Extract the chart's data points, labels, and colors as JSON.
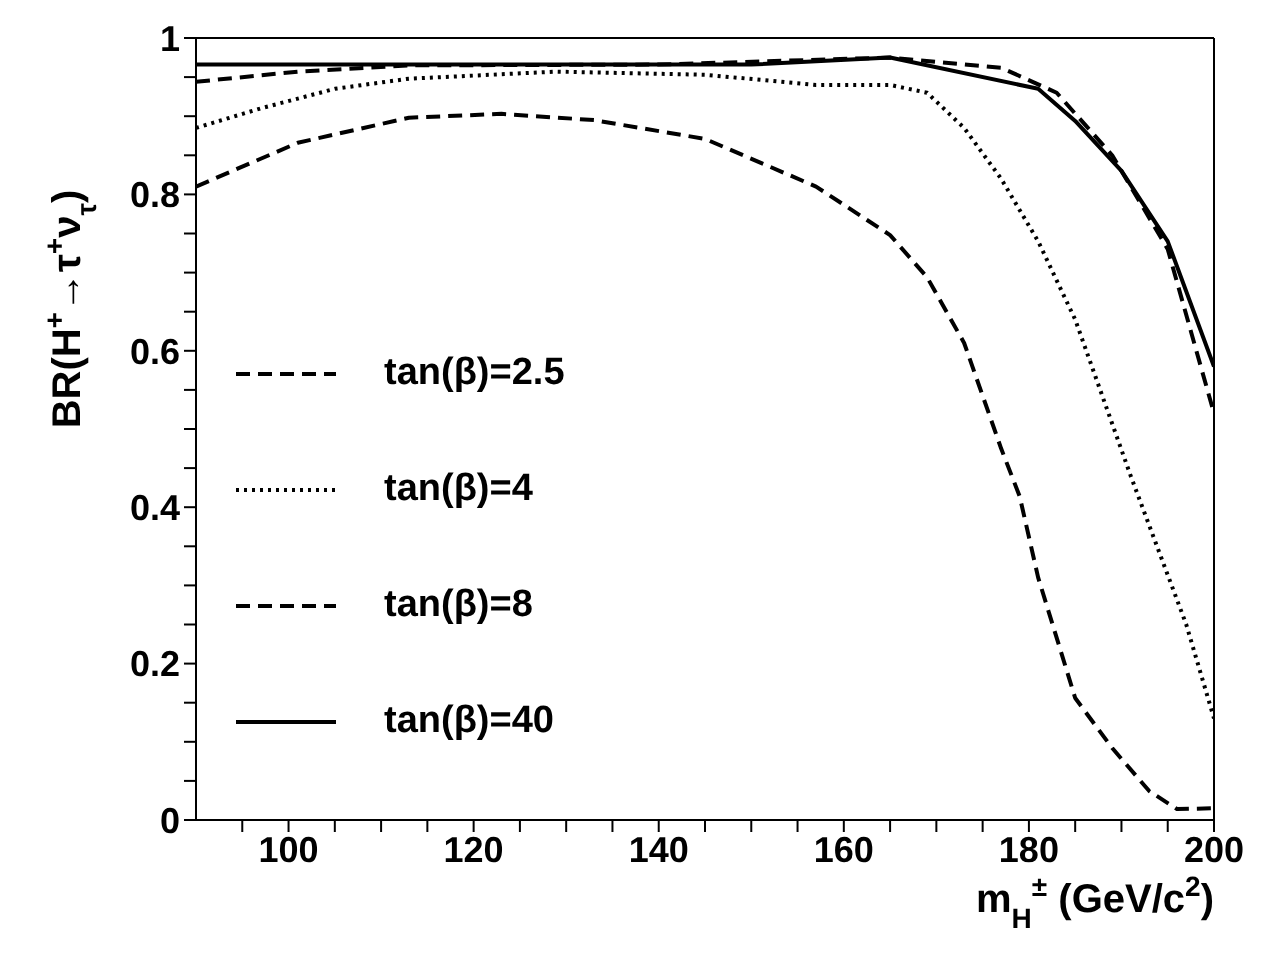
{
  "chart_data": {
    "type": "line",
    "xlabel": "m$_{H}$$^{±}$ (GeV/c$^{2}$)",
    "ylabel": "BR(H$^{+}$→τ$^{+}$ν$_{τ}$)",
    "xlim": [
      90,
      200
    ],
    "ylim": [
      0,
      1
    ],
    "xticks": [
      {
        "value": 95,
        "label": null
      },
      100,
      {
        "value": 105,
        "label": null
      },
      {
        "value": 110,
        "label": null
      },
      {
        "value": 115,
        "label": null
      },
      120,
      {
        "value": 125,
        "label": null
      },
      {
        "value": 130,
        "label": null
      },
      {
        "value": 135,
        "label": null
      },
      140,
      {
        "value": 145,
        "label": null
      },
      {
        "value": 150,
        "label": null
      },
      {
        "value": 155,
        "label": null
      },
      160,
      {
        "value": 165,
        "label": null
      },
      {
        "value": 170,
        "label": null
      },
      {
        "value": 175,
        "label": null
      },
      180,
      {
        "value": 185,
        "label": null
      },
      {
        "value": 190,
        "label": null
      },
      {
        "value": 195,
        "label": null
      },
      200
    ],
    "yticks": [
      0,
      {
        "value": 0.05,
        "label": null
      },
      {
        "value": 0.1,
        "label": null
      },
      {
        "value": 0.15,
        "label": null
      },
      0.2,
      {
        "value": 0.25,
        "label": null
      },
      {
        "value": 0.3,
        "label": null
      },
      {
        "value": 0.35,
        "label": null
      },
      0.4,
      {
        "value": 0.45,
        "label": null
      },
      {
        "value": 0.5,
        "label": null
      },
      {
        "value": 0.55,
        "label": null
      },
      0.6,
      {
        "value": 0.65,
        "label": null
      },
      {
        "value": 0.7,
        "label": null
      },
      {
        "value": 0.75,
        "label": null
      },
      0.8,
      {
        "value": 0.85,
        "label": null
      },
      {
        "value": 0.9,
        "label": null
      },
      {
        "value": 0.95,
        "label": null
      },
      1
    ],
    "legend": "left",
    "marker": "none",
    "series": [
      {
        "name": "tan(β)=2.5",
        "color": "#000000",
        "line_style": "dashed",
        "x": [
          90,
          101,
          113,
          123,
          133,
          145,
          157,
          165,
          169,
          173,
          177,
          179,
          181,
          185,
          189,
          193,
          196,
          200
        ],
        "values": [
          0.81,
          0.866,
          0.898,
          0.903,
          0.895,
          0.871,
          0.81,
          0.748,
          0.694,
          0.61,
          0.475,
          0.414,
          0.31,
          0.156,
          0.092,
          0.037,
          0.014,
          0.015
        ]
      },
      {
        "name": "tan(β)=4",
        "color": "#000000",
        "line_style": "dotted",
        "x": [
          90,
          97,
          105,
          113,
          129,
          145,
          157,
          165,
          169,
          173,
          177,
          181,
          185,
          191,
          197,
          200
        ],
        "values": [
          0.885,
          0.91,
          0.935,
          0.948,
          0.957,
          0.953,
          0.94,
          0.94,
          0.93,
          0.885,
          0.82,
          0.74,
          0.64,
          0.44,
          0.25,
          0.13
        ]
      },
      {
        "name": "tan(β)=8",
        "color": "#000000",
        "line_style": "dashed",
        "x": [
          90,
          101,
          113,
          140,
          165,
          177,
          183,
          189,
          195,
          200
        ],
        "values": [
          0.944,
          0.957,
          0.965,
          0.966,
          0.975,
          0.962,
          0.93,
          0.85,
          0.73,
          0.52
        ]
      },
      {
        "name": "tan(β)=40",
        "color": "#000000",
        "line_style": "solid",
        "x": [
          90,
          120,
          150,
          165,
          181,
          185,
          190,
          195,
          200
        ],
        "values": [
          0.966,
          0.966,
          0.966,
          0.975,
          0.935,
          0.894,
          0.83,
          0.74,
          0.58
        ]
      }
    ]
  }
}
